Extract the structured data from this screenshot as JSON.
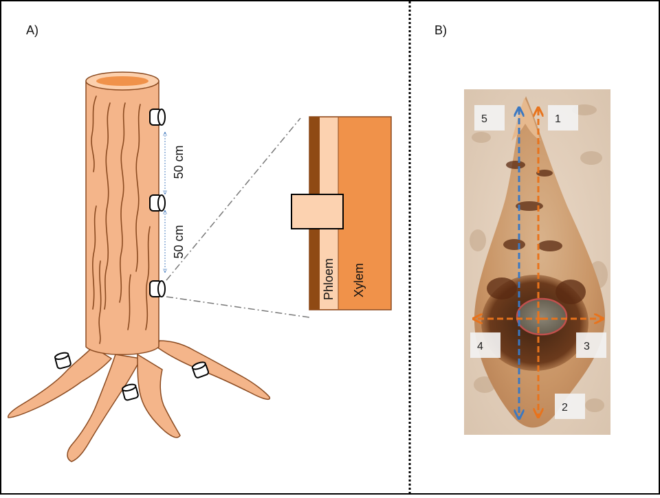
{
  "panels": {
    "a": {
      "label": "A)",
      "spacing_upper": "50 cm",
      "spacing_lower": "50 cm",
      "tissue_phloem": "Phloem",
      "tissue_xylem": "Xylem"
    },
    "b": {
      "label": "B)",
      "directions": [
        "1",
        "2",
        "3",
        "4",
        "5"
      ]
    }
  },
  "colors": {
    "bark": "#f4b58a",
    "bark_outline": "#8a4a20",
    "xylem": "#f0924a",
    "phloem": "#fcd2b0",
    "outer_bark": "#8f4a14",
    "arrow_orange": "#e8731c",
    "arrow_blue": "#3b78c2",
    "lesion_ring": "#c0504d"
  },
  "icons": [
    "sample-cylinder-icon",
    "direction-arrow-icon"
  ]
}
